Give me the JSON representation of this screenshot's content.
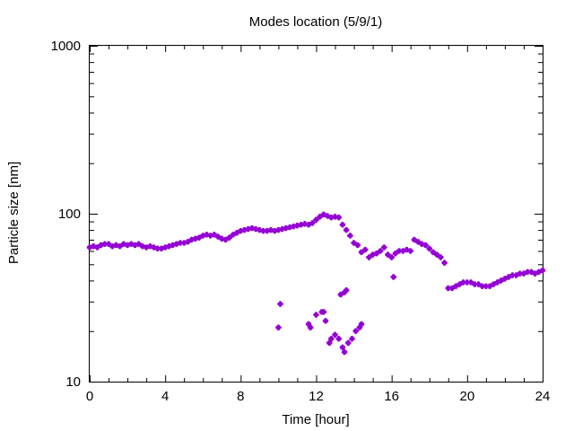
{
  "chart_data": {
    "type": "scatter",
    "title": "Modes location (5/9/1)",
    "xlabel": "Time [hour]",
    "ylabel": "Particle size [nm]",
    "xlim": [
      0,
      24
    ],
    "ylim": [
      10,
      1000
    ],
    "yscale": "log",
    "grid": false,
    "legend": "none",
    "marker_color": "#9400d3",
    "x_ticks": [
      {
        "value": 0,
        "label": "0"
      },
      {
        "value": 4,
        "label": "4"
      },
      {
        "value": 8,
        "label": "8"
      },
      {
        "value": 12,
        "label": "12"
      },
      {
        "value": 16,
        "label": "16"
      },
      {
        "value": 20,
        "label": "20"
      },
      {
        "value": 24,
        "label": "24"
      }
    ],
    "y_ticks": [
      {
        "value": 10,
        "label": "10"
      },
      {
        "value": 100,
        "label": "100"
      },
      {
        "value": 1000,
        "label": "1000"
      }
    ],
    "series": [
      {
        "points": [
          [
            0.0,
            63
          ],
          [
            0.2,
            64
          ],
          [
            0.4,
            63
          ],
          [
            0.6,
            65
          ],
          [
            0.8,
            66
          ],
          [
            1.0,
            66
          ],
          [
            1.2,
            64
          ],
          [
            1.4,
            65
          ],
          [
            1.6,
            64
          ],
          [
            1.8,
            66
          ],
          [
            2.0,
            65
          ],
          [
            2.2,
            66
          ],
          [
            2.4,
            65
          ],
          [
            2.6,
            66
          ],
          [
            2.8,
            64
          ],
          [
            3.0,
            63
          ],
          [
            3.2,
            64
          ],
          [
            3.4,
            63
          ],
          [
            3.6,
            62
          ],
          [
            3.8,
            62
          ],
          [
            4.0,
            63
          ],
          [
            4.2,
            64
          ],
          [
            4.4,
            65
          ],
          [
            4.6,
            66
          ],
          [
            4.8,
            67
          ],
          [
            5.0,
            67
          ],
          [
            5.2,
            68
          ],
          [
            5.4,
            70
          ],
          [
            5.6,
            71
          ],
          [
            5.8,
            72
          ],
          [
            6.0,
            74
          ],
          [
            6.2,
            75
          ],
          [
            6.4,
            74
          ],
          [
            6.6,
            75
          ],
          [
            6.8,
            73
          ],
          [
            7.0,
            71
          ],
          [
            7.2,
            70
          ],
          [
            7.4,
            72
          ],
          [
            7.6,
            75
          ],
          [
            7.8,
            77
          ],
          [
            8.0,
            79
          ],
          [
            8.2,
            80
          ],
          [
            8.4,
            81
          ],
          [
            8.6,
            82
          ],
          [
            8.8,
            81
          ],
          [
            9.0,
            80
          ],
          [
            9.2,
            79
          ],
          [
            9.4,
            79
          ],
          [
            9.6,
            80
          ],
          [
            9.8,
            79
          ],
          [
            10.0,
            80
          ],
          [
            10.2,
            81
          ],
          [
            10.4,
            82
          ],
          [
            10.6,
            83
          ],
          [
            10.8,
            84
          ],
          [
            11.0,
            85
          ],
          [
            11.2,
            86
          ],
          [
            11.4,
            87
          ],
          [
            11.6,
            86
          ],
          [
            11.8,
            88
          ],
          [
            12.0,
            92
          ],
          [
            12.2,
            96
          ],
          [
            12.4,
            99
          ],
          [
            12.6,
            97
          ],
          [
            12.8,
            95
          ],
          [
            13.0,
            96
          ],
          [
            13.2,
            95
          ],
          [
            13.4,
            86
          ],
          [
            13.6,
            80
          ],
          [
            13.8,
            74
          ],
          [
            14.0,
            67
          ],
          [
            14.2,
            65
          ],
          [
            14.4,
            59
          ],
          [
            14.6,
            61
          ],
          [
            14.8,
            55
          ],
          [
            15.0,
            57
          ],
          [
            15.2,
            58
          ],
          [
            15.4,
            60
          ],
          [
            15.6,
            63
          ],
          [
            15.8,
            57
          ],
          [
            16.0,
            55
          ],
          [
            16.2,
            58
          ],
          [
            16.4,
            60
          ],
          [
            16.6,
            60
          ],
          [
            16.8,
            61
          ],
          [
            17.0,
            60
          ],
          [
            17.2,
            70
          ],
          [
            17.4,
            68
          ],
          [
            17.6,
            66
          ],
          [
            17.8,
            65
          ],
          [
            18.0,
            62
          ],
          [
            18.2,
            59
          ],
          [
            18.4,
            57
          ],
          [
            18.6,
            55
          ],
          [
            18.8,
            51
          ],
          [
            19.0,
            36
          ],
          [
            19.2,
            36
          ],
          [
            19.4,
            37
          ],
          [
            19.6,
            38
          ],
          [
            19.8,
            39
          ],
          [
            20.0,
            39
          ],
          [
            20.2,
            39
          ],
          [
            20.4,
            38
          ],
          [
            20.6,
            38
          ],
          [
            20.8,
            37
          ],
          [
            21.0,
            37
          ],
          [
            21.2,
            37
          ],
          [
            21.4,
            38
          ],
          [
            21.6,
            39
          ],
          [
            21.8,
            40
          ],
          [
            22.0,
            41
          ],
          [
            22.2,
            42
          ],
          [
            22.4,
            43
          ],
          [
            22.6,
            43
          ],
          [
            22.8,
            44
          ],
          [
            23.0,
            44
          ],
          [
            23.2,
            45
          ],
          [
            23.4,
            45
          ],
          [
            23.6,
            44
          ],
          [
            23.8,
            45
          ],
          [
            24.0,
            46
          ],
          [
            16.1,
            42
          ],
          [
            13.6,
            35
          ],
          [
            13.5,
            34
          ],
          [
            13.3,
            33
          ],
          [
            10.0,
            21
          ],
          [
            10.1,
            29
          ],
          [
            11.6,
            22
          ],
          [
            11.7,
            21
          ],
          [
            12.3,
            26
          ],
          [
            12.5,
            23
          ],
          [
            12.4,
            26
          ],
          [
            12.0,
            25
          ],
          [
            12.7,
            17
          ],
          [
            12.8,
            18
          ],
          [
            13.0,
            19
          ],
          [
            13.2,
            18
          ],
          [
            13.4,
            16
          ],
          [
            13.5,
            15
          ],
          [
            13.7,
            17
          ],
          [
            13.9,
            18
          ],
          [
            14.1,
            20
          ],
          [
            14.3,
            21
          ],
          [
            14.4,
            22
          ]
        ]
      }
    ]
  }
}
